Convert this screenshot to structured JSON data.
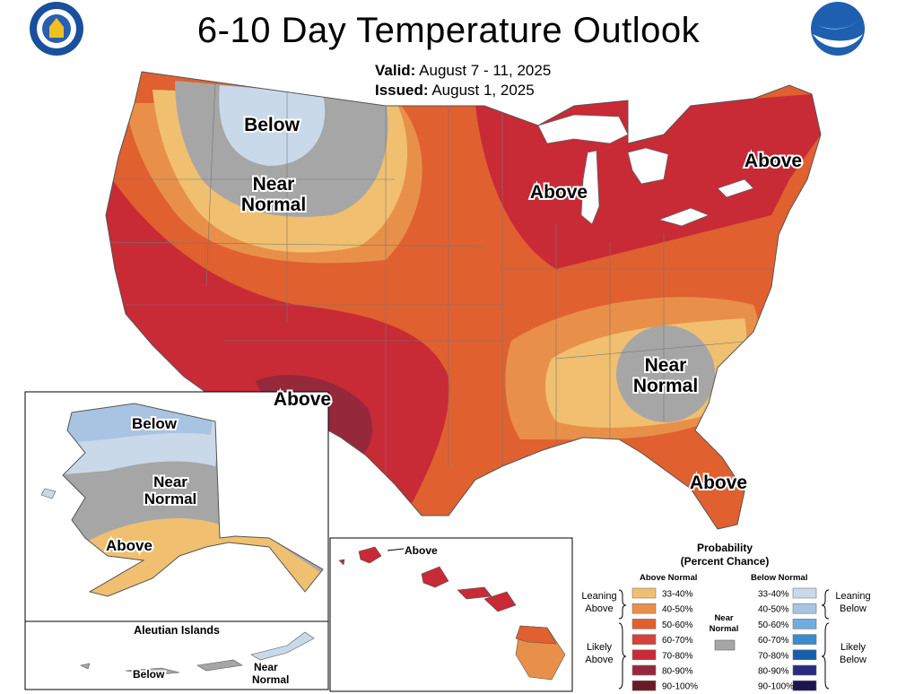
{
  "header": {
    "title": "6-10 Day Temperature Outlook",
    "valid_label": "Valid:",
    "valid_value": "August 7 - 11, 2025",
    "issued_label": "Issued:",
    "issued_value": "August 1, 2025",
    "left_seal_icon": "department-of-commerce-seal",
    "right_logo_icon": "noaa-logo"
  },
  "map_labels": {
    "conus": [
      "Below",
      "Near",
      "Normal",
      "Above",
      "Above",
      "Above",
      "Near",
      "Normal",
      "Above"
    ],
    "alaska": [
      "Below",
      "Near",
      "Normal",
      "Above"
    ],
    "aleutian_title": "Aleutian Islands",
    "aleutian": [
      "Below",
      "Near",
      "Normal"
    ],
    "hawaii": [
      "Above"
    ]
  },
  "legend": {
    "title1": "Probability",
    "title2": "(Percent Chance)",
    "above_header": "Above Normal",
    "below_header": "Below Normal",
    "near_label1": "Near",
    "near_label2": "Normal",
    "leaning_above": [
      "Leaning",
      "Above"
    ],
    "likely_above": [
      "Likely",
      "Above"
    ],
    "leaning_below": [
      "Leaning",
      "Below"
    ],
    "likely_below": [
      "Likely",
      "Below"
    ],
    "above_ranges": [
      "33-40%",
      "40-50%",
      "50-60%",
      "60-70%",
      "70-80%",
      "80-90%",
      "90-100%"
    ],
    "below_ranges": [
      "33-40%",
      "40-50%",
      "50-60%",
      "60-70%",
      "70-80%",
      "80-90%",
      "90-100%"
    ],
    "above_colors": [
      "#f0c070",
      "#e8904a",
      "#e06030",
      "#d8403a",
      "#c82a36",
      "#96283c",
      "#6a1a24"
    ],
    "below_colors": [
      "#c9d9ea",
      "#a9c4e2",
      "#6eaedc",
      "#3a8cd0",
      "#1a5da8",
      "#2a2a80",
      "#1c1650"
    ],
    "near_color": "#a6a6a6"
  }
}
